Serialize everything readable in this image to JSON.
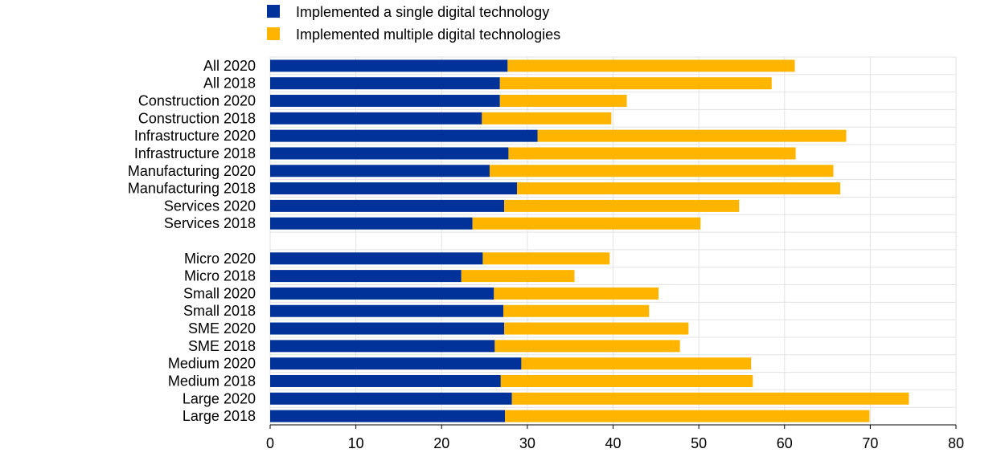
{
  "chart_data": {
    "type": "bar",
    "orientation": "horizontal",
    "stacked": true,
    "categories": [
      "All 2020",
      "All 2018",
      "Construction 2020",
      "Construction 2018",
      "Infrastructure 2020",
      "Infrastructure 2018",
      "Manufacturing 2020",
      "Manufacturing 2018",
      "Services 2020",
      "Services 2018",
      "",
      "Micro 2020",
      "Micro 2018",
      "Small 2020",
      "Small 2018",
      "SME 2020",
      "SME 2018",
      "Medium 2020",
      "Medium 2018",
      "Large 2020",
      "Large 2018"
    ],
    "series": [
      {
        "name": "Implemented a single digital technology",
        "color": "#003299",
        "values": [
          27.7,
          26.8,
          26.8,
          24.7,
          31.2,
          27.8,
          25.6,
          28.8,
          27.3,
          23.6,
          null,
          24.8,
          22.3,
          26.1,
          27.2,
          27.3,
          26.2,
          29.3,
          26.9,
          28.2,
          27.4
        ]
      },
      {
        "name": "Implemented multiple digital technologies",
        "color": "#FFB400",
        "values": [
          33.5,
          31.7,
          14.8,
          15.1,
          36.0,
          33.5,
          40.1,
          37.7,
          27.4,
          26.6,
          null,
          14.8,
          13.2,
          19.2,
          17.0,
          21.5,
          21.6,
          26.8,
          29.4,
          46.3,
          42.5
        ]
      }
    ],
    "xlim": [
      0,
      80
    ],
    "xticks": [
      0,
      10,
      20,
      30,
      40,
      50,
      60,
      70,
      80
    ],
    "legend_position": "top",
    "grid": true,
    "title": "",
    "xlabel": "",
    "ylabel": ""
  }
}
